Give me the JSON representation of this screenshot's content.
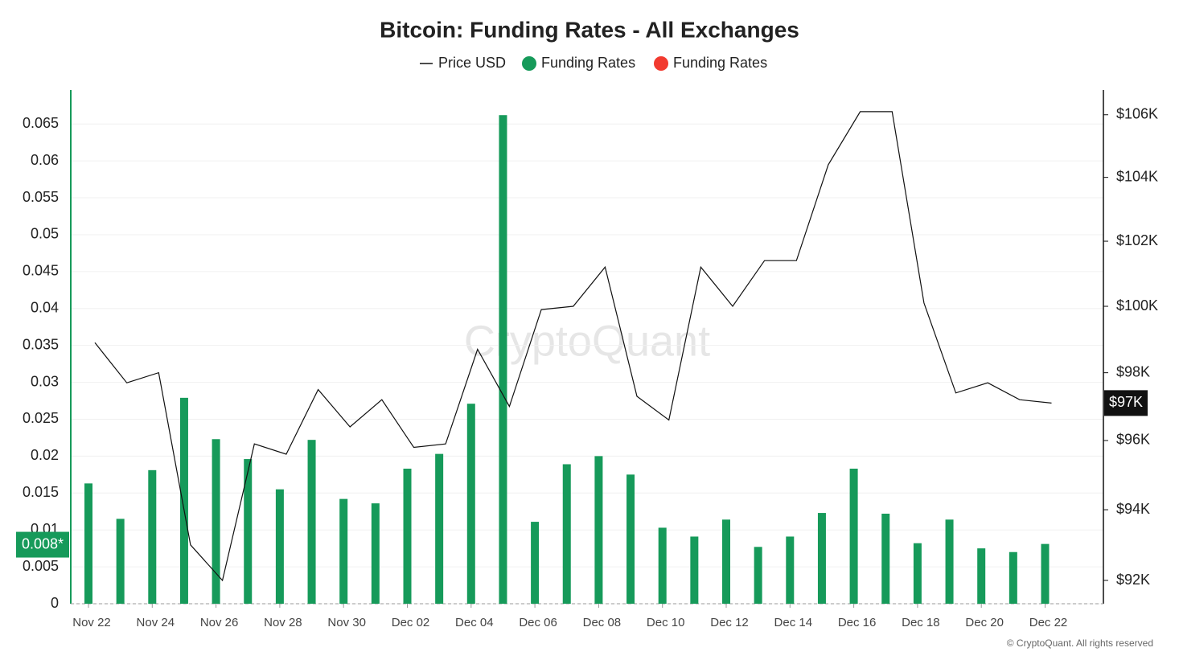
{
  "chart_data": {
    "type": "bar_line",
    "title": "Bitcoin: Funding Rates - All Exchanges",
    "watermark": "CryptoQuant",
    "footer": "© CryptoQuant. All rights reserved",
    "categories": [
      "Nov 22",
      null,
      "Nov 24",
      null,
      "Nov 26",
      null,
      "Nov 28",
      null,
      "Nov 30",
      null,
      "Dec 02",
      null,
      "Dec 04",
      null,
      "Dec 06",
      null,
      "Dec 08",
      null,
      "Dec 10",
      null,
      "Dec 12",
      null,
      "Dec 14",
      null,
      "Dec 16",
      null,
      "Dec 18",
      null,
      "Dec 20",
      null,
      "Dec 22"
    ],
    "series": [
      {
        "name": "Price USD",
        "type": "line",
        "axis": "y2",
        "color": "#111111",
        "values": [
          98900,
          97700,
          98000,
          93000,
          92000,
          95900,
          95600,
          97500,
          96400,
          97200,
          95800,
          95900,
          98700,
          97000,
          99900,
          100000,
          101200,
          97300,
          96600,
          101200,
          100000,
          101400,
          101400,
          104400,
          106100,
          106100,
          100100,
          97400,
          97700,
          97200,
          97100
        ]
      },
      {
        "name": "Funding Rates",
        "type": "bar",
        "color": "#169a5a",
        "negative_color": "#f23a2f",
        "values": [
          0.0163,
          0.0115,
          0.0181,
          0.0279,
          0.0223,
          0.0196,
          0.0155,
          0.0222,
          0.0142,
          0.0136,
          0.0183,
          0.0203,
          0.0271,
          0.0662,
          0.0111,
          0.0189,
          0.02,
          0.0175,
          0.0103,
          0.0091,
          0.0114,
          0.0077,
          0.0091,
          0.0123,
          0.0183,
          0.0122,
          0.0082,
          0.0114,
          0.0075,
          0.007,
          0.0081
        ]
      }
    ],
    "ylim": [
      0,
      0.0696
    ],
    "yticks": [
      0,
      0.005,
      0.01,
      0.015,
      0.02,
      0.025,
      0.03,
      0.035,
      0.04,
      0.045,
      0.05,
      0.055,
      0.06,
      0.065
    ],
    "y2lim": [
      91350,
      106800
    ],
    "y2_log": true,
    "y2ticks": [
      {
        "value": 92000,
        "label": "$92K"
      },
      {
        "value": 94000,
        "label": "$94K"
      },
      {
        "value": 96000,
        "label": "$96K"
      },
      {
        "value": 98000,
        "label": "$98K"
      },
      {
        "value": 100000,
        "label": "$100K"
      },
      {
        "value": 102000,
        "label": "$102K"
      },
      {
        "value": 104000,
        "label": "$104K"
      },
      {
        "value": 106000,
        "label": "$106K"
      }
    ],
    "grid": true,
    "rate_marker": {
      "value": 0.008,
      "label": "0.008*"
    },
    "price_marker": {
      "value": 97100,
      "label": "$97K"
    }
  }
}
